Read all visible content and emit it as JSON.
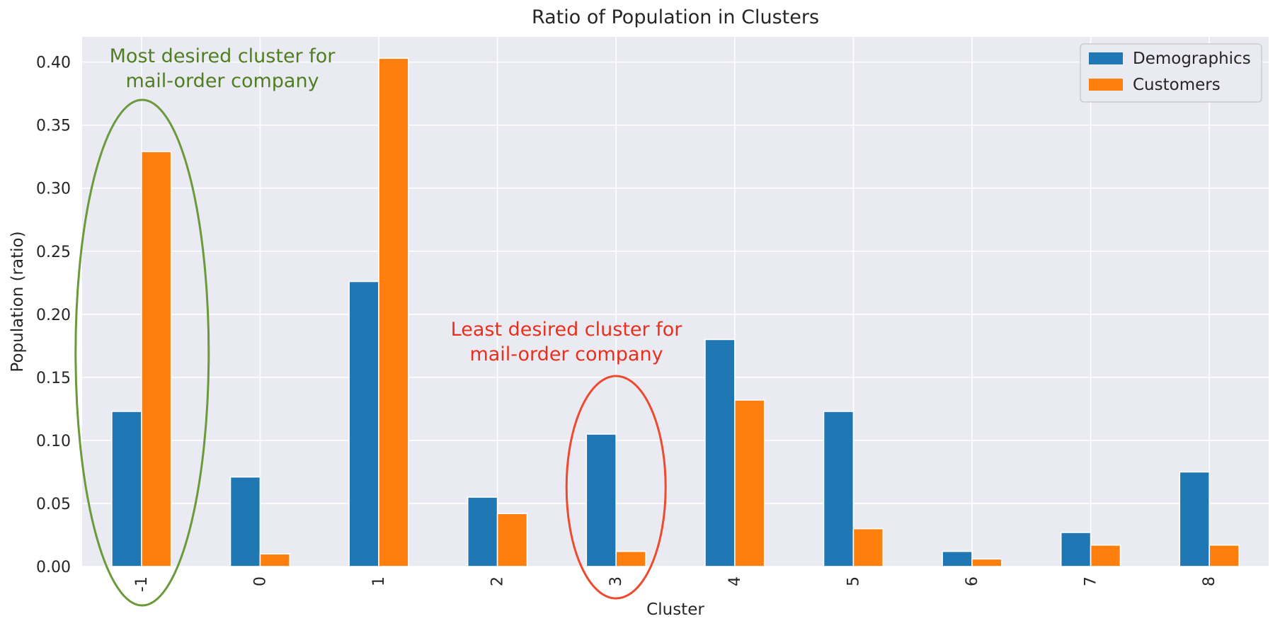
{
  "chart_data": {
    "type": "bar",
    "title": "Ratio of Population in Clusters",
    "xlabel": "Cluster",
    "ylabel": "Population (ratio)",
    "categories": [
      "-1",
      "0",
      "1",
      "2",
      "3",
      "4",
      "5",
      "6",
      "7",
      "8"
    ],
    "series": [
      {
        "name": "Demographics",
        "color": "#1f77b4",
        "values": [
          0.123,
          0.071,
          0.226,
          0.055,
          0.105,
          0.18,
          0.123,
          0.012,
          0.027,
          0.075
        ]
      },
      {
        "name": "Customers",
        "color": "#ff7f0e",
        "values": [
          0.329,
          0.01,
          0.403,
          0.042,
          0.012,
          0.132,
          0.03,
          0.006,
          0.017,
          0.017
        ]
      }
    ],
    "ylim": [
      0,
      0.42
    ],
    "yticks": [
      0.0,
      0.05,
      0.1,
      0.15,
      0.2,
      0.25,
      0.3,
      0.35,
      0.4
    ],
    "ytick_labels": [
      "0.00",
      "0.05",
      "0.10",
      "0.15",
      "0.20",
      "0.25",
      "0.30",
      "0.35",
      "0.40"
    ],
    "grid": true,
    "legend_position": "top-right",
    "background": "#eaeaf2",
    "annotations": [
      {
        "id": "most",
        "lines": [
          "Most desired cluster for",
          "mail-order company"
        ],
        "color": "#4f7f20",
        "ring_color": "#6a9a3a",
        "target_category": "-1"
      },
      {
        "id": "least",
        "lines": [
          "Least desired cluster for",
          "mail-order company"
        ],
        "color": "#e8301c",
        "ring_color": "#ee4a2e",
        "target_category": "3"
      }
    ]
  }
}
